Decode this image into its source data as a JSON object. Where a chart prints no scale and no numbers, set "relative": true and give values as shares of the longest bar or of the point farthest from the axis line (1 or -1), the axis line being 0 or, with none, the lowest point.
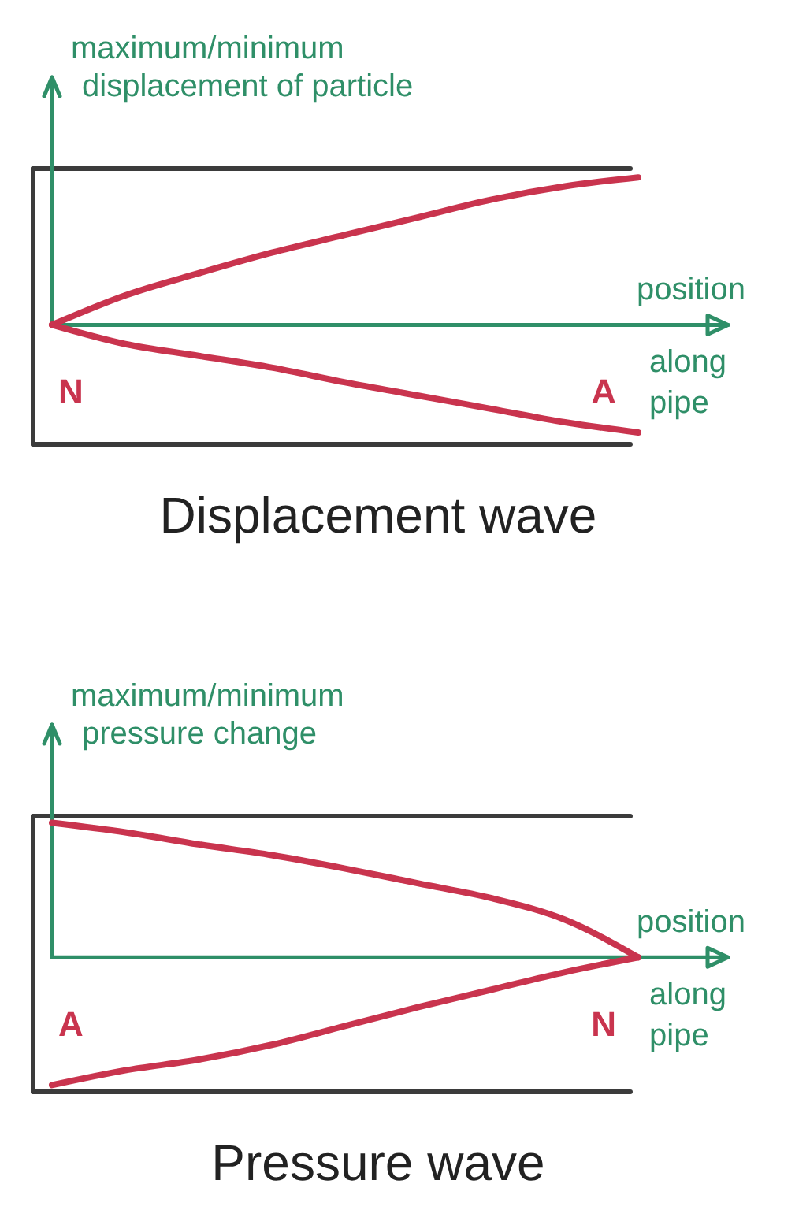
{
  "chart_data": [
    {
      "type": "line",
      "title": "Displacement wave",
      "xlabel": "position along pipe",
      "ylabel": "maximum/minimum displacement of particle",
      "relative": true,
      "line_style": "solid",
      "categories": [
        null,
        null,
        null,
        null,
        null,
        null,
        null,
        null,
        null
      ],
      "series": [
        {
          "color": "#c9344e",
          "values": [
            0,
            0.2,
            0.35,
            0.49,
            0.61,
            0.73,
            0.85,
            0.94,
            1
          ]
        },
        {
          "color": "#c9344e",
          "values": [
            0,
            -0.13,
            -0.21,
            -0.29,
            -0.39,
            -0.48,
            -0.57,
            -0.66,
            -0.73
          ]
        }
      ],
      "ref_lines": [
        {
          "axis": "y",
          "value": 1.06,
          "color": "#3b3b3b"
        },
        {
          "axis": "y",
          "value": 0,
          "color": "#2f8f68"
        },
        {
          "axis": "y",
          "value": -0.81,
          "color": "#3b3b3b"
        }
      ],
      "annotations": [
        "N",
        "A"
      ]
    },
    {
      "type": "line",
      "title": "Pressure wave",
      "xlabel": "position along pipe",
      "ylabel": "maximum/minimum pressure change",
      "relative": true,
      "line_style": "solid",
      "categories": [
        null,
        null,
        null,
        null,
        null,
        null,
        null,
        null,
        null
      ],
      "series": [
        {
          "color": "#c9344e",
          "values": [
            1,
            0.93,
            0.84,
            0.76,
            0.66,
            0.55,
            0.44,
            0.28,
            0
          ]
        },
        {
          "color": "#c9344e",
          "values": [
            -0.95,
            -0.84,
            -0.76,
            -0.65,
            -0.51,
            -0.37,
            -0.24,
            -0.11,
            0
          ]
        }
      ],
      "ref_lines": [
        {
          "axis": "y",
          "value": 1.05,
          "color": "#3b3b3b"
        },
        {
          "axis": "y",
          "value": 0,
          "color": "#2f8f68"
        },
        {
          "axis": "y",
          "value": -1.0,
          "color": "#3b3b3b"
        }
      ],
      "annotations": [
        "A",
        "N"
      ]
    }
  ]
}
